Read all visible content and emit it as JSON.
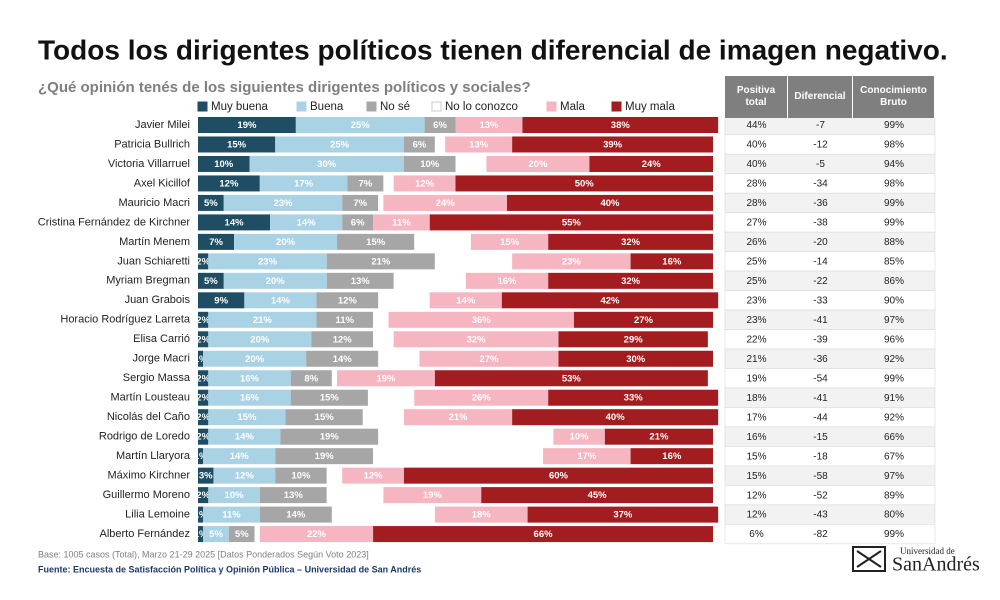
{
  "chart_data": {
    "type": "bar",
    "orientation": "horizontal",
    "stacked": true,
    "title": "Todos los dirigentes políticos tienen diferencial de imagen negativo.",
    "subtitle": "¿Qué opinión tenés de los siguientes dirigentes políticos y sociales?",
    "categories": [
      "Javier Milei",
      "Patricia Bullrich",
      "Victoria Villarruel",
      "Axel Kicillof",
      "Mauricio Macri",
      "Cristina Fernández de Kirchner",
      "Martín Menem",
      "Juan Schiaretti",
      "Myriam Bregman",
      "Juan Grabois",
      "Horacio Rodríguez Larreta",
      "Elisa Carrió",
      "Jorge Macri",
      "Sergio Massa",
      "Martín Lousteau",
      "Nicolás del Caño",
      "Rodrigo de Loredo",
      "Martín Llaryora",
      "Máximo Kirchner",
      "Guillermo Moreno",
      "Lilia Lemoine",
      "Alberto Fernández"
    ],
    "series": [
      {
        "name": "Muy buena",
        "color": "#1f4e64",
        "values": [
          19,
          15,
          10,
          12,
          5,
          14,
          7,
          2,
          5,
          9,
          2,
          2,
          1,
          2,
          2,
          2,
          2,
          1,
          3,
          2,
          1,
          1
        ],
        "value_labels": [
          "19%",
          "15%",
          "10%",
          "12%",
          "5%",
          "14%",
          "7%",
          "2%",
          "5%",
          "9%",
          "2%",
          "2%",
          "1%",
          "2%",
          "2%",
          "2%",
          "2%",
          "1%",
          "3%",
          "2%",
          "1%",
          "1%"
        ]
      },
      {
        "name": "Buena",
        "color": "#a9d3e5",
        "values": [
          25,
          25,
          30,
          17,
          23,
          14,
          20,
          23,
          20,
          14,
          21,
          20,
          20,
          16,
          16,
          15,
          14,
          14,
          12,
          10,
          11,
          5
        ],
        "value_labels": [
          "25%",
          "25%",
          "30%",
          "17%",
          "23%",
          "14%",
          "20%",
          "23%",
          "20%",
          "14%",
          "21%",
          "20%",
          "20%",
          "16%",
          "16%",
          "15%",
          "14%",
          "14%",
          "12%",
          "10%",
          "11%",
          "5%"
        ]
      },
      {
        "name": "No sé",
        "color": "#a6a6a6",
        "values": [
          6,
          6,
          10,
          7,
          7,
          6,
          15,
          21,
          13,
          12,
          11,
          12,
          14,
          8,
          15,
          15,
          19,
          19,
          10,
          13,
          14,
          5
        ],
        "value_labels": [
          "6%",
          "6%",
          "10%",
          "7%",
          "7%",
          "6%",
          "15%",
          "21%",
          "13%",
          "12%",
          "11%",
          "12%",
          "14%",
          "8%",
          "15%",
          "15%",
          "19%",
          "19%",
          "10%",
          "13%",
          "14%",
          "5%"
        ]
      },
      {
        "name": "No lo conozco",
        "color": "#ffffff",
        "values": [
          0,
          2,
          6,
          2,
          1,
          0,
          11,
          15,
          14,
          10,
          3,
          4,
          8,
          1,
          9,
          8,
          34,
          33,
          3,
          11,
          20,
          1
        ]
      },
      {
        "name": "Mala",
        "color": "#f5b5c1",
        "values": [
          13,
          13,
          20,
          12,
          24,
          11,
          15,
          23,
          16,
          14,
          36,
          32,
          27,
          19,
          26,
          21,
          10,
          17,
          12,
          19,
          18,
          22
        ],
        "value_labels": [
          "13%",
          "13%",
          "20%",
          "12%",
          "24%",
          "11%",
          "15%",
          "23%",
          "16%",
          "14%",
          "36%",
          "32%",
          "27%",
          "19%",
          "26%",
          "21%",
          "10%",
          "17%",
          "12%",
          "19%",
          "18%",
          "22%"
        ]
      },
      {
        "name": "Muy mala",
        "color": "#a31c1f",
        "values": [
          38,
          39,
          24,
          50,
          40,
          55,
          32,
          16,
          32,
          42,
          27,
          29,
          30,
          53,
          33,
          40,
          21,
          16,
          60,
          45,
          37,
          66
        ],
        "value_labels": [
          "38%",
          "39%",
          "24%",
          "50%",
          "40%",
          "55%",
          "32%",
          "16%",
          "32%",
          "42%",
          "27%",
          "29%",
          "30%",
          "53%",
          "33%",
          "40%",
          "21%",
          "16%",
          "60%",
          "45%",
          "37%",
          "66%"
        ]
      }
    ],
    "table": {
      "columns": [
        "Positiva total",
        "Diferencial",
        "Conocimiento Bruto"
      ],
      "rows": [
        [
          "44%",
          "-7",
          "99%"
        ],
        [
          "40%",
          "-12",
          "98%"
        ],
        [
          "40%",
          "-5",
          "94%"
        ],
        [
          "28%",
          "-34",
          "98%"
        ],
        [
          "28%",
          "-36",
          "99%"
        ],
        [
          "27%",
          "-38",
          "99%"
        ],
        [
          "26%",
          "-20",
          "88%"
        ],
        [
          "25%",
          "-14",
          "85%"
        ],
        [
          "25%",
          "-22",
          "86%"
        ],
        [
          "23%",
          "-33",
          "90%"
        ],
        [
          "23%",
          "-41",
          "97%"
        ],
        [
          "22%",
          "-39",
          "96%"
        ],
        [
          "21%",
          "-36",
          "92%"
        ],
        [
          "19%",
          "-54",
          "99%"
        ],
        [
          "18%",
          "-41",
          "91%"
        ],
        [
          "17%",
          "-44",
          "92%"
        ],
        [
          "16%",
          "-15",
          "66%"
        ],
        [
          "15%",
          "-18",
          "67%"
        ],
        [
          "15%",
          "-58",
          "97%"
        ],
        [
          "12%",
          "-52",
          "89%"
        ],
        [
          "12%",
          "-43",
          "80%"
        ],
        [
          "6%",
          "-82",
          "99%"
        ]
      ]
    },
    "note": "Base: 1005 casos (Total), Marzo 21-29 2025 [Datos Ponderados Según Voto 2023]",
    "source": "Fuente: Encuesta de Satisfacción Política y Opinión Pública – Universidad de San Andrés"
  },
  "logo": {
    "line1": "Universidad de",
    "line2": "SanAndrés"
  }
}
